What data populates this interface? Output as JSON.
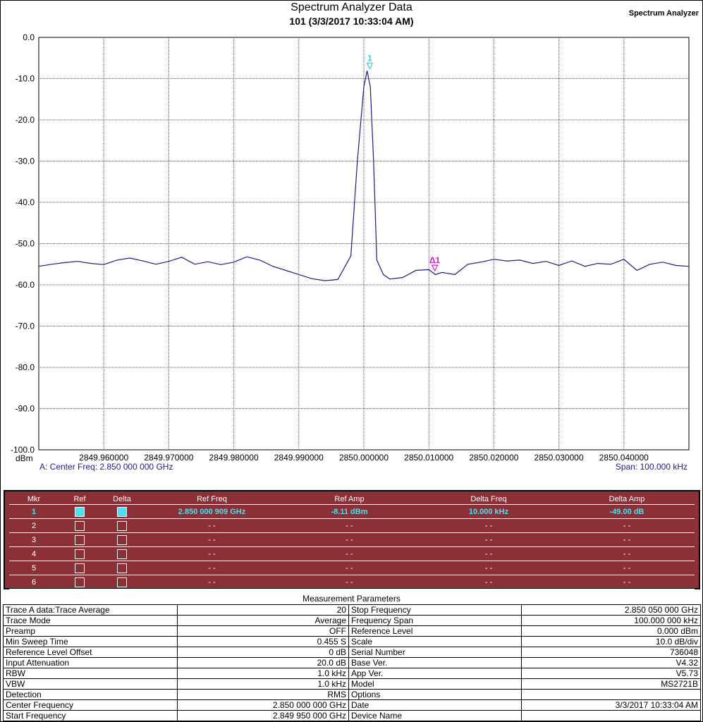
{
  "header": {
    "title": "Spectrum Analyzer Data",
    "subtitle": "101 (3/3/2017 10:33:04 AM)",
    "app_label": "Spectrum Analyzer"
  },
  "chart_data": {
    "type": "line",
    "title": "Spectrum Analyzer Data",
    "ylabel": "dBm",
    "ylim": [
      -100,
      0
    ],
    "yticks": [
      "0.0",
      "-10.0",
      "-20.0",
      "-30.0",
      "-40.0",
      "-50.0",
      "-60.0",
      "-70.0",
      "-80.0",
      "-90.0",
      "-100.0"
    ],
    "xlim": [
      2849.95,
      2850.05
    ],
    "xticks": [
      "2849.960000",
      "2849.970000",
      "2849.980000",
      "2849.990000",
      "2850.000000",
      "2850.010000",
      "2850.020000",
      "2850.030000",
      "2850.040000"
    ],
    "grid": true,
    "center_freq_label": "A: Center Freq: 2.850 000 000 GHz",
    "span_label": "Span: 100.000 kHz",
    "series": [
      {
        "color": "#1a1a8c",
        "x": [
          2849.95,
          2849.952,
          2849.954,
          2849.956,
          2849.958,
          2849.96,
          2849.962,
          2849.964,
          2849.966,
          2849.968,
          2849.97,
          2849.972,
          2849.974,
          2849.976,
          2849.978,
          2849.98,
          2849.982,
          2849.984,
          2849.986,
          2849.988,
          2849.99,
          2849.992,
          2849.994,
          2849.996,
          2849.998,
          2849.999,
          2850.0,
          2850.0005,
          2850.001,
          2850.0015,
          2850.002,
          2850.003,
          2850.004,
          2850.006,
          2850.008,
          2850.01,
          2850.011,
          2850.012,
          2850.014,
          2850.016,
          2850.018,
          2850.02,
          2850.022,
          2850.024,
          2850.026,
          2850.028,
          2850.03,
          2850.032,
          2850.034,
          2850.036,
          2850.038,
          2850.04,
          2850.042,
          2850.044,
          2850.046,
          2850.048,
          2850.05
        ],
        "y": [
          -55.5,
          -55.0,
          -54.6,
          -54.3,
          -54.8,
          -55.1,
          -54.0,
          -53.5,
          -54.2,
          -55.0,
          -54.3,
          -53.3,
          -55.0,
          -54.4,
          -55.1,
          -54.5,
          -53.2,
          -54.0,
          -55.5,
          -56.5,
          -57.5,
          -58.5,
          -59.0,
          -58.7,
          -53.0,
          -30.0,
          -12.0,
          -8.1,
          -12.0,
          -30.0,
          -54.0,
          -57.5,
          -58.6,
          -58.2,
          -56.5,
          -56.3,
          -57.5,
          -57.0,
          -57.5,
          -55.0,
          -54.5,
          -53.8,
          -54.2,
          -54.0,
          -54.8,
          -54.3,
          -55.3,
          -54.2,
          -55.5,
          -54.8,
          -55.0,
          -53.8,
          -56.5,
          -55.0,
          -54.5,
          -55.3,
          -55.5
        ]
      }
    ],
    "markers": [
      {
        "label": "1",
        "x": 2850.000909,
        "y": -8.11,
        "color": "#2ad4e0"
      },
      {
        "label": "Δ1",
        "x": 2850.010909,
        "y": -57.11,
        "color": "#d020d0"
      }
    ]
  },
  "marker_table": {
    "headers": [
      "Mkr",
      "Ref",
      "Delta",
      "Ref Freq",
      "Ref Amp",
      "Delta Freq",
      "Delta Amp"
    ],
    "rows": [
      {
        "mkr": "1",
        "ref": true,
        "delta": true,
        "ref_freq": "2.850 000 909 GHz",
        "ref_amp": "-8.11 dBm",
        "delta_freq": "10.000 kHz",
        "delta_amp": "-49.00 dB"
      },
      {
        "mkr": "2",
        "ref": false,
        "delta": false,
        "ref_freq": "- -",
        "ref_amp": "- -",
        "delta_freq": "- -",
        "delta_amp": "- -"
      },
      {
        "mkr": "3",
        "ref": false,
        "delta": false,
        "ref_freq": "- -",
        "ref_amp": "- -",
        "delta_freq": "- -",
        "delta_amp": "- -"
      },
      {
        "mkr": "4",
        "ref": false,
        "delta": false,
        "ref_freq": "- -",
        "ref_amp": "- -",
        "delta_freq": "- -",
        "delta_amp": "- -"
      },
      {
        "mkr": "5",
        "ref": false,
        "delta": false,
        "ref_freq": "- -",
        "ref_amp": "- -",
        "delta_freq": "- -",
        "delta_amp": "- -"
      },
      {
        "mkr": "6",
        "ref": false,
        "delta": false,
        "ref_freq": "- -",
        "ref_amp": "- -",
        "delta_freq": "- -",
        "delta_amp": "- -"
      }
    ]
  },
  "params": {
    "title": "Measurement Parameters",
    "rows": [
      [
        "Trace A data:Trace Average",
        "20",
        "Stop Frequency",
        "2.850 050 000 GHz"
      ],
      [
        "Trace Mode",
        "Average",
        "Frequency Span",
        "100.000 000 kHz"
      ],
      [
        "Preamp",
        "OFF",
        "Reference Level",
        "0.000  dBm"
      ],
      [
        "Min Sweep Time",
        "0.455 S",
        "Scale",
        "10.0  dB/div"
      ],
      [
        "Reference Level Offset",
        "0 dB",
        "Serial Number",
        "736048"
      ],
      [
        "Input Attenuation",
        "20.0 dB",
        "Base Ver.",
        "V4.32"
      ],
      [
        "RBW",
        "1.0 kHz",
        "App Ver.",
        "V5.73"
      ],
      [
        "VBW",
        "1.0 kHz",
        "Model",
        "MS2721B"
      ],
      [
        "Detection",
        "RMS",
        "Options",
        ""
      ],
      [
        "Center Frequency",
        "2.850 000 000 GHz",
        "Date",
        "3/3/2017 10:33:04 AM"
      ],
      [
        "Start Frequency",
        "2.849 950 000 GHz",
        "Device Name",
        ""
      ]
    ]
  }
}
